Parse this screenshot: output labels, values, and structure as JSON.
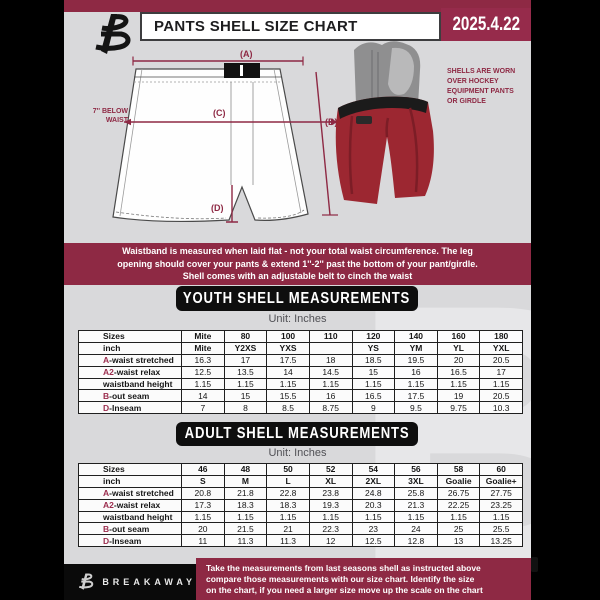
{
  "colors": {
    "accent_maroon": "#8e2944",
    "date_box": "#962b4b",
    "banner_black": "#0e0e0e",
    "page_gray": "#d9d9db",
    "shell_red": "#9c2731"
  },
  "header": {
    "title": "PANTS SHELL SIZE CHART",
    "date": "2025.4.22"
  },
  "diagram": {
    "label_a": "(A)",
    "label_b": "(B)",
    "label_c": "(C)",
    "label_d": "(D)",
    "waist_note_lines": [
      "7'' BELOW",
      "WAIST"
    ],
    "photo_note_lines": [
      "SHELLS ARE WORN",
      "OVER HOCKEY",
      "EQUIPMENT PANTS",
      "OR GIRDLE"
    ]
  },
  "notice": {
    "lines": [
      "Waistband is measured when laid flat - not your total waist circumference. The leg",
      "opening should cover your pants & extend 1''-2'' past the bottom of your pant/girdle.",
      "Shell comes with an adjustable belt to cinch the waist"
    ]
  },
  "youth": {
    "banner": "YOUTH SHELL MEASUREMENTS",
    "unit": "Unit: Inches"
  },
  "adult": {
    "banner": "ADULT SHELL MEASUREMENTS",
    "unit": "Unit: Inches"
  },
  "tables": {
    "youth": {
      "rows": [
        {
          "bold": true,
          "prefix": "",
          "label": "Sizes",
          "values": [
            "Mite",
            "80",
            "100",
            "110",
            "120",
            "140",
            "160",
            "180"
          ]
        },
        {
          "bold": true,
          "prefix": "",
          "label": "inch",
          "values": [
            "Mite",
            "Y2XS",
            "YXS",
            "",
            "YS",
            "YM",
            "YL",
            "YXL"
          ]
        },
        {
          "prefix": "A",
          "label": "-waist stretched",
          "values": [
            "16.3",
            "17",
            "17.5",
            "18",
            "18.5",
            "19.5",
            "20",
            "20.5"
          ]
        },
        {
          "prefix": "A2",
          "label": "-waist relax",
          "values": [
            "12.5",
            "13.5",
            "14",
            "14.5",
            "15",
            "16",
            "16.5",
            "17"
          ]
        },
        {
          "prefix": "",
          "label": "waistband height",
          "values": [
            "1.15",
            "1.15",
            "1.15",
            "1.15",
            "1.15",
            "1.15",
            "1.15",
            "1.15"
          ]
        },
        {
          "prefix": "B",
          "label": "-out seam",
          "values": [
            "14",
            "15",
            "15.5",
            "16",
            "16.5",
            "17.5",
            "19",
            "20.5"
          ]
        },
        {
          "prefix": "D",
          "label": "-Inseam",
          "values": [
            "7",
            "8",
            "8.5",
            "8.75",
            "9",
            "9.5",
            "9.75",
            "10.3"
          ]
        }
      ]
    },
    "adult": {
      "rows": [
        {
          "bold": true,
          "prefix": "",
          "label": "Sizes",
          "values": [
            "46",
            "48",
            "50",
            "52",
            "54",
            "56",
            "58",
            "60"
          ]
        },
        {
          "bold": true,
          "prefix": "",
          "label": "inch",
          "values": [
            "S",
            "M",
            "L",
            "XL",
            "2XL",
            "3XL",
            "Goalie",
            "Goalie+"
          ]
        },
        {
          "prefix": "A",
          "label": "-waist stretched",
          "values": [
            "20.8",
            "21.8",
            "22.8",
            "23.8",
            "24.8",
            "25.8",
            "26.75",
            "27.75"
          ]
        },
        {
          "prefix": "A2",
          "label": "-waist relax",
          "values": [
            "17.3",
            "18.3",
            "18.3",
            "19.3",
            "20.3",
            "21.3",
            "22.25",
            "23.25"
          ]
        },
        {
          "prefix": "",
          "label": "waistband height",
          "values": [
            "1.15",
            "1.15",
            "1.15",
            "1.15",
            "1.15",
            "1.15",
            "1.15",
            "1.15"
          ]
        },
        {
          "prefix": "B",
          "label": "-out seam",
          "values": [
            "20",
            "21.5",
            "21",
            "22.3",
            "23",
            "24",
            "25",
            "25.5"
          ]
        },
        {
          "prefix": "D",
          "label": "-Inseam",
          "values": [
            "11",
            "11.3",
            "11.3",
            "12",
            "12.5",
            "12.8",
            "13",
            "13.25"
          ]
        }
      ]
    }
  },
  "footer": {
    "brand": "BREAKAWAY",
    "lines": [
      "Take the measurements from last seasons shell as instructed above",
      "compare those measurements  with our size chart. Identify the size",
      "on the chart, if you need a larger size move up the scale on the chart"
    ]
  },
  "watermark_letter": "B"
}
